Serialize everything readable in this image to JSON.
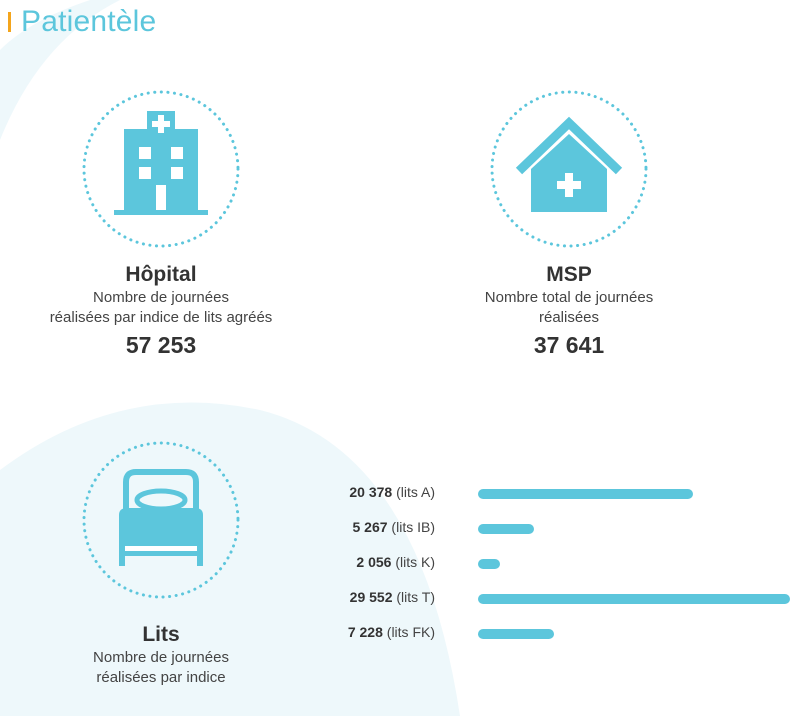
{
  "header": {
    "title": "Patientèle"
  },
  "colors": {
    "accent": "#5cc6dc",
    "header_bar": "#f4a51c",
    "text": "#333333"
  },
  "hopital": {
    "icon": "hospital-icon",
    "title": "Hôpital",
    "desc_line1": "Nombre de journées",
    "desc_line2": "réalisées par indice de lits agréés",
    "value": "57 253"
  },
  "msp": {
    "icon": "house-medical-icon",
    "title": "MSP",
    "desc_line1": "Nombre total de journées",
    "desc_line2": "réalisées",
    "value": "37 641"
  },
  "lits": {
    "icon": "bed-icon",
    "title": "Lits",
    "desc_line1": "Nombre de journées",
    "desc_line2": "réalisées par indice"
  },
  "chart_data": {
    "type": "bar",
    "orientation": "horizontal",
    "categories": [
      "lits A",
      "lits IB",
      "lits K",
      "lits T",
      "lits FK"
    ],
    "values": [
      20378,
      5267,
      2056,
      29552,
      7228
    ],
    "value_labels": [
      "20 378",
      "5 267",
      "2 056",
      "29 552",
      "7 228"
    ],
    "category_labels": [
      "(lits A)",
      "(lits IB)",
      "(lits K)",
      "(lits T)",
      "(lits FK)"
    ],
    "xlim": [
      0,
      29552
    ],
    "grid": false
  }
}
